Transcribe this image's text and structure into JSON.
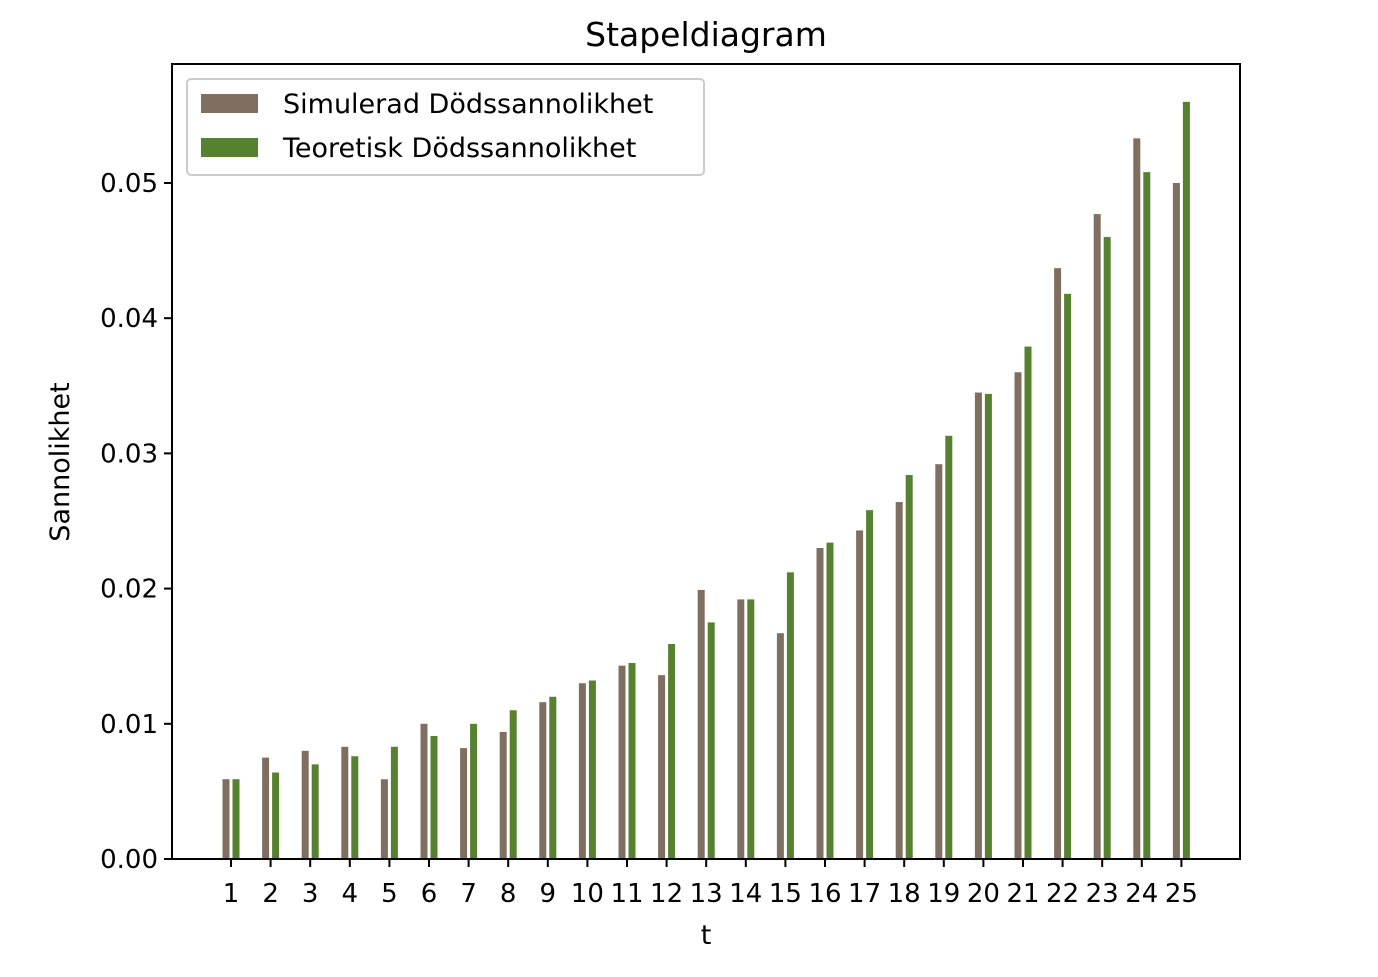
{
  "chart_data": {
    "type": "bar",
    "title": "Stapeldiagram",
    "xlabel": "t",
    "ylabel": "Sannolikhet",
    "categories": [
      "1",
      "2",
      "3",
      "4",
      "5",
      "6",
      "7",
      "8",
      "9",
      "10",
      "11",
      "12",
      "13",
      "14",
      "15",
      "16",
      "17",
      "18",
      "19",
      "20",
      "21",
      "22",
      "23",
      "24",
      "25"
    ],
    "series": [
      {
        "name": "Simulerad Dödssannolikhet",
        "color": "#7f6f61",
        "values": [
          0.0059,
          0.0075,
          0.008,
          0.0083,
          0.0059,
          0.01,
          0.0082,
          0.0094,
          0.0116,
          0.013,
          0.0143,
          0.0136,
          0.0199,
          0.0192,
          0.0167,
          0.023,
          0.0243,
          0.0264,
          0.0292,
          0.0345,
          0.036,
          0.0437,
          0.0477,
          0.0533,
          0.05
        ]
      },
      {
        "name": "Teoretisk Dödssannolikhet",
        "color": "#56812f",
        "values": [
          0.0059,
          0.0064,
          0.007,
          0.0076,
          0.0083,
          0.0091,
          0.01,
          0.011,
          0.012,
          0.0132,
          0.0145,
          0.0159,
          0.0175,
          0.0192,
          0.0212,
          0.0234,
          0.0258,
          0.0284,
          0.0313,
          0.0344,
          0.0379,
          0.0418,
          0.046,
          0.0508,
          0.056
        ]
      }
    ],
    "ylim": [
      0,
      0.0588
    ],
    "yticks": [
      0.0,
      0.01,
      0.02,
      0.03,
      0.04,
      0.05
    ],
    "ytick_labels": [
      "0.00",
      "0.01",
      "0.02",
      "0.03",
      "0.04",
      "0.05"
    ],
    "grid": false,
    "legend_position": "top-left"
  }
}
